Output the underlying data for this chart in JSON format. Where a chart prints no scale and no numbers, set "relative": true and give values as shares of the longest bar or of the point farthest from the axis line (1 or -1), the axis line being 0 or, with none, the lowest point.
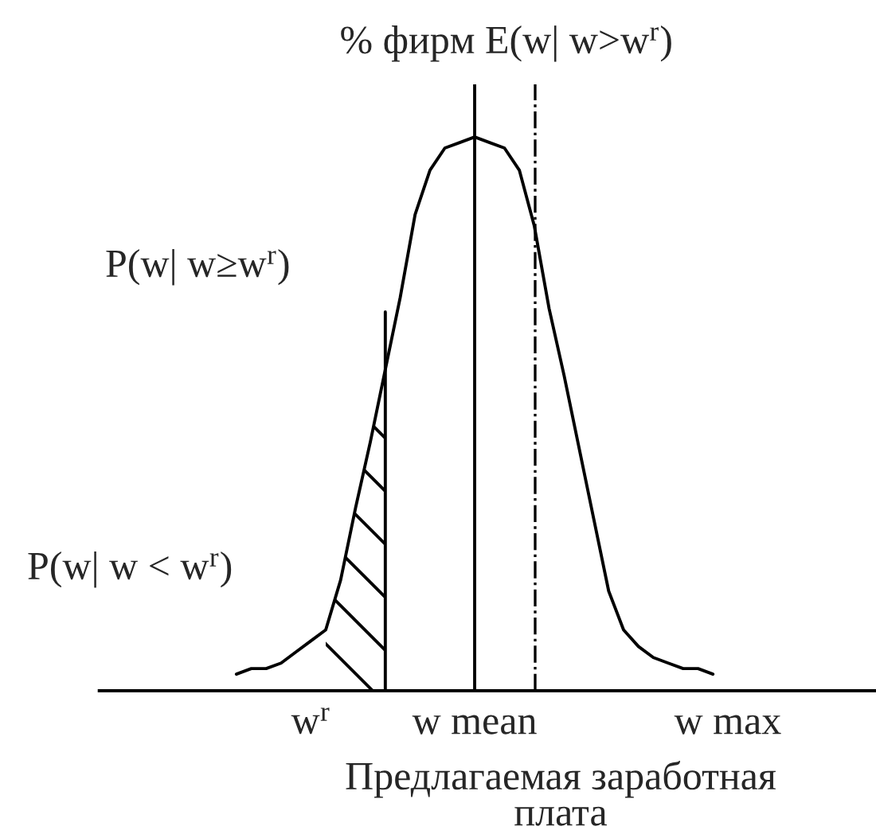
{
  "chart_data": {
    "type": "line",
    "title": "% фирм E(w| w>w$^{r}$)",
    "xlabel": "Предлагаемая заработная плата",
    "annotations": [
      "P(w| w≥w$^{r}$)",
      "P(w| w < w$^{r}$)"
    ],
    "categories": [
      null,
      null,
      null,
      null,
      null,
      null,
      null,
      null,
      null,
      null,
      null,
      null,
      null,
      null,
      "w$^{r}$",
      null,
      null,
      null,
      null,
      null,
      null,
      null,
      null,
      null,
      null,
      "w mean",
      null,
      null,
      null,
      null,
      null,
      null,
      null,
      null,
      null,
      null,
      null,
      null,
      null,
      null,
      null,
      null,
      "w max",
      null,
      null,
      null,
      null,
      null,
      null,
      null,
      null,
      null
    ],
    "series": [
      {
        "color": "#000000",
        "values": [
          null,
          null,
          null,
          null,
          null,
          null,
          null,
          null,
          null,
          0.03,
          0.04,
          0.04,
          0.05,
          0.07,
          0.09,
          0.11,
          0.2,
          0.33,
          0.45,
          0.58,
          0.71,
          0.86,
          0.94,
          0.98,
          0.99,
          1,
          0.99,
          0.98,
          0.94,
          0.84,
          0.69,
          0.57,
          0.44,
          0.31,
          0.18,
          0.11,
          0.08,
          0.06,
          0.05,
          0.04,
          0.04,
          0.03,
          null,
          null,
          null,
          null,
          null,
          null,
          null,
          null,
          null,
          null
        ]
      },
      {
        "type": "area",
        "color": "#000000",
        "values": [
          null,
          null,
          null,
          null,
          null,
          null,
          null,
          null,
          null,
          null,
          null,
          null,
          null,
          null,
          null,
          0.11,
          0.2,
          0.33,
          0.45,
          0.58,
          null,
          null,
          null,
          null,
          null,
          null,
          null,
          null,
          null,
          null,
          null,
          null,
          null,
          null,
          null,
          null,
          null,
          null,
          null,
          null,
          null,
          null,
          null,
          null,
          null,
          null,
          null,
          null,
          null,
          null,
          null,
          null
        ]
      }
    ],
    "relative": true,
    "tick_labels": "x",
    "ref_lines": [
      {
        "axis": "x",
        "value": "w mean",
        "color": "#000000"
      }
    ]
  }
}
